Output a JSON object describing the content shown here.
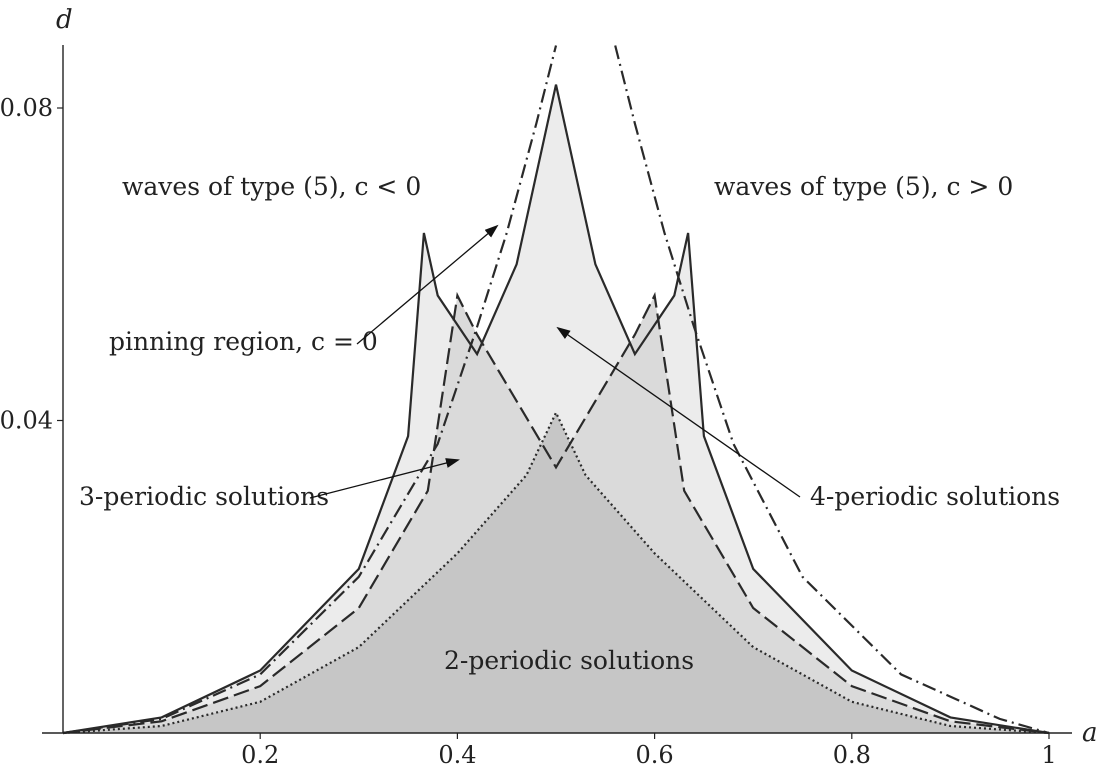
{
  "chart_data": {
    "type": "area",
    "xlabel": "a",
    "ylabel": "d",
    "xlim": [
      0,
      1
    ],
    "ylim": [
      0,
      0.088
    ],
    "xticks": [
      "0.2",
      "0.4",
      "0.6",
      "0.8",
      "1"
    ],
    "yticks": [
      "0.04",
      "0.08"
    ],
    "grid": false,
    "legend": "none",
    "colors": {
      "pinning_light": "#ececec",
      "mid": "#dadada",
      "dark": "#c6c6c6",
      "line": "#2a2a2a"
    },
    "series": [
      {
        "style": "solid",
        "points": [
          [
            0.0,
            0.0
          ],
          [
            0.1,
            0.002
          ],
          [
            0.2,
            0.008
          ],
          [
            0.3,
            0.021
          ],
          [
            0.35,
            0.038
          ],
          [
            0.366,
            0.064
          ],
          [
            0.38,
            0.056
          ],
          [
            0.42,
            0.0485
          ],
          [
            0.46,
            0.06
          ],
          [
            0.5,
            0.083
          ],
          [
            0.54,
            0.06
          ],
          [
            0.58,
            0.0485
          ],
          [
            0.62,
            0.056
          ],
          [
            0.634,
            0.064
          ],
          [
            0.65,
            0.038
          ],
          [
            0.7,
            0.021
          ],
          [
            0.8,
            0.008
          ],
          [
            0.9,
            0.002
          ],
          [
            1.0,
            0.0
          ]
        ]
      },
      {
        "style": "dash-dot",
        "points": [
          [
            0.0,
            0.0
          ],
          [
            0.1,
            0.0018
          ],
          [
            0.2,
            0.0075
          ],
          [
            0.3,
            0.02
          ],
          [
            0.38,
            0.037
          ],
          [
            0.42,
            0.052
          ],
          [
            0.45,
            0.064
          ],
          [
            0.48,
            0.078
          ],
          [
            0.5,
            0.088
          ]
        ]
      },
      {
        "style": "dash-dot",
        "points": [
          [
            0.56,
            0.088
          ],
          [
            0.58,
            0.078
          ],
          [
            0.61,
            0.064
          ],
          [
            0.64,
            0.052
          ],
          [
            0.68,
            0.037
          ],
          [
            0.75,
            0.02
          ],
          [
            0.85,
            0.0075
          ],
          [
            0.95,
            0.0018
          ],
          [
            1.0,
            0.0
          ]
        ]
      },
      {
        "style": "dashed",
        "points": [
          [
            0.0,
            0.0
          ],
          [
            0.1,
            0.0015
          ],
          [
            0.2,
            0.006
          ],
          [
            0.3,
            0.016
          ],
          [
            0.37,
            0.031
          ],
          [
            0.4,
            0.056
          ],
          [
            0.42,
            0.051
          ],
          [
            0.5,
            0.034
          ],
          [
            0.58,
            0.051
          ],
          [
            0.6,
            0.056
          ],
          [
            0.63,
            0.031
          ],
          [
            0.7,
            0.016
          ],
          [
            0.8,
            0.006
          ],
          [
            0.9,
            0.0015
          ],
          [
            1.0,
            0.0
          ]
        ]
      },
      {
        "style": "dotted",
        "points": [
          [
            0.0,
            0.0
          ],
          [
            0.1,
            0.0009
          ],
          [
            0.2,
            0.004
          ],
          [
            0.3,
            0.011
          ],
          [
            0.4,
            0.023
          ],
          [
            0.47,
            0.033
          ],
          [
            0.5,
            0.041
          ],
          [
            0.53,
            0.033
          ],
          [
            0.6,
            0.023
          ],
          [
            0.7,
            0.011
          ],
          [
            0.8,
            0.004
          ],
          [
            0.9,
            0.0009
          ],
          [
            1.0,
            0.0
          ]
        ]
      }
    ],
    "annotations": [
      {
        "text": "waves of type (5), c < 0"
      },
      {
        "text": "waves of type (5), c > 0"
      },
      {
        "text": "pinning region, c = 0"
      },
      {
        "text": "3-periodic solutions"
      },
      {
        "text": "4-periodic solutions"
      },
      {
        "text": "2-periodic solutions"
      }
    ]
  }
}
